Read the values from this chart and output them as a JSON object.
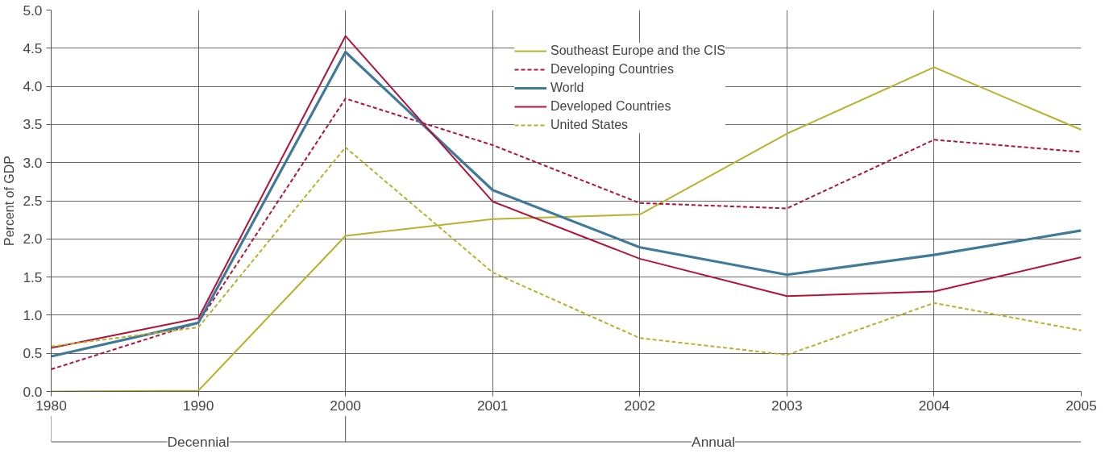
{
  "chart_data": {
    "type": "line",
    "ylabel": "Percent of GDP",
    "categories": [
      "1980",
      "1990",
      "2000",
      "2001",
      "2002",
      "2003",
      "2004",
      "2005"
    ],
    "series": [
      {
        "name": "Southeast Europe and the CIS",
        "color": "#b8b12c",
        "line_style": "solid",
        "values": [
          0.0,
          0.01,
          2.04,
          2.26,
          2.32,
          3.38,
          4.25,
          3.43
        ]
      },
      {
        "name": "Developing Countries",
        "color": "#b5123a",
        "line_style": "dashed",
        "values": [
          0.29,
          0.9,
          3.84,
          3.23,
          2.47,
          2.4,
          3.3,
          3.14
        ]
      },
      {
        "name": "World",
        "color": "#3f7a9a",
        "line_style": "solid",
        "values": [
          0.46,
          0.9,
          4.45,
          2.64,
          1.89,
          1.53,
          1.79,
          2.11
        ]
      },
      {
        "name": "Developed Countries",
        "color": "#b5123a",
        "line_style": "solid",
        "values": [
          0.57,
          0.96,
          4.66,
          2.49,
          1.74,
          1.25,
          1.31,
          1.76
        ]
      },
      {
        "name": "United States",
        "color": "#b8b12c",
        "line_style": "dashed",
        "values": [
          0.59,
          0.84,
          3.2,
          1.56,
          0.7,
          0.48,
          1.16,
          0.8
        ]
      }
    ],
    "ylim": [
      0,
      5
    ],
    "yticks": [
      {
        "value": 0,
        "label": "0.0"
      },
      {
        "value": 0.5,
        "label": "0.5"
      },
      {
        "value": 1,
        "label": "1.0"
      },
      {
        "value": 1.5,
        "label": "1.5"
      },
      {
        "value": 2,
        "label": "2.0"
      },
      {
        "value": 2.5,
        "label": "2.5"
      },
      {
        "value": 3,
        "label": "3.0"
      },
      {
        "value": 3.5,
        "label": "3.5"
      },
      {
        "value": 4,
        "label": "4.0"
      },
      {
        "value": 4.5,
        "label": "4.5"
      },
      {
        "value": 5,
        "label": "5.0"
      }
    ],
    "grid": true,
    "legend": "top right",
    "marker": "none",
    "annotations": [
      "Decennial",
      "Annual"
    ]
  }
}
